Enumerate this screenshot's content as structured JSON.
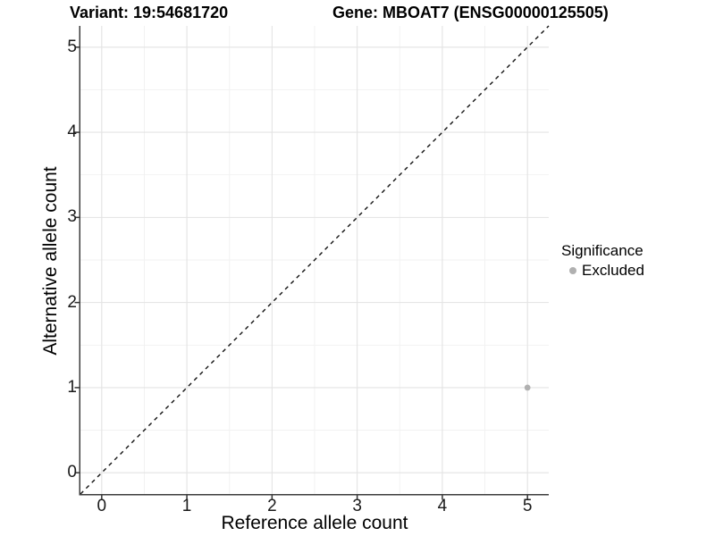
{
  "header": {
    "title_left": "Variant: 19:54681720",
    "title_right": "Gene: MBOAT7 (ENSG00000125505)"
  },
  "chart_data": {
    "type": "scatter",
    "xlabel": "Reference allele count",
    "ylabel": "Alternative allele count",
    "xlim": [
      -0.25,
      5.25
    ],
    "ylim": [
      -0.25,
      5.25
    ],
    "xticks": [
      0,
      1,
      2,
      3,
      4,
      5
    ],
    "yticks": [
      0,
      1,
      2,
      3,
      4,
      5
    ],
    "minor_xticks": [
      0.5,
      1.5,
      2.5,
      3.5,
      4.5
    ],
    "minor_yticks": [
      0.5,
      1.5,
      2.5,
      3.5,
      4.5
    ],
    "grid": {
      "major_color": "#e3e3e3",
      "minor_color": "#f1f1f1",
      "background": "#ffffff"
    },
    "axis_color": "#3d3d3d",
    "tick_color": "#333333",
    "reference_line": {
      "type": "identity",
      "slope": 1,
      "intercept": 0,
      "style": "dashed",
      "color": "#111111"
    },
    "series": [
      {
        "name": "Excluded",
        "color": "#b0b0b0",
        "points": [
          {
            "x": 5,
            "y": 1
          }
        ]
      }
    ],
    "legend": {
      "title": "Significance",
      "position": "right",
      "items": [
        {
          "label": "Excluded",
          "color": "#b0b0b0"
        }
      ]
    }
  }
}
